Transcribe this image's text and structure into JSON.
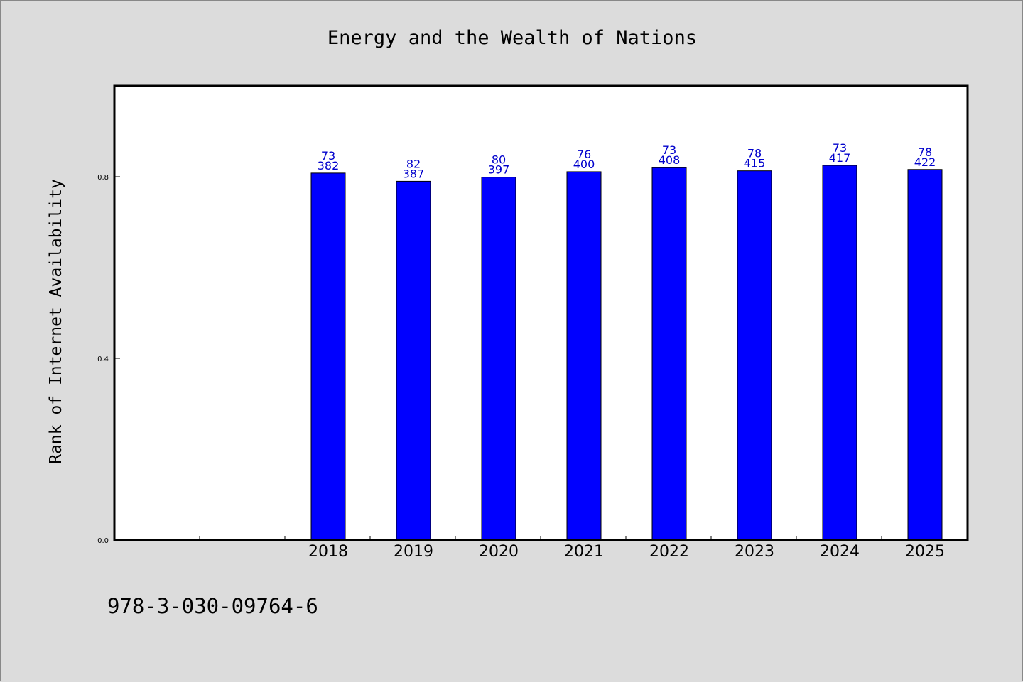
{
  "chart_data": {
    "type": "bar",
    "title": "Energy and the Wealth of Nations",
    "xlabel": "",
    "ylabel": "Rank of Internet Availability",
    "categories": [
      "",
      "",
      "2018",
      "2019",
      "2020",
      "2021",
      "2022",
      "2023",
      "2024",
      "2025"
    ],
    "series": [
      {
        "values": [
          null,
          null,
          0.808,
          0.79,
          0.799,
          0.811,
          0.82,
          0.813,
          0.825,
          0.816
        ],
        "color": "#0000ff",
        "label_top": [
          null,
          null,
          "73",
          "82",
          "80",
          "76",
          "73",
          "78",
          "73",
          "78"
        ],
        "label_bottom": [
          null,
          null,
          "382",
          "387",
          "397",
          "400",
          "408",
          "415",
          "417",
          "422"
        ],
        "label_color": "#0000cc"
      }
    ],
    "ylim": [
      0,
      1.0
    ],
    "yticks": [
      "0.0",
      "0.4",
      "0.8"
    ],
    "grid": false,
    "legend": "none"
  },
  "footer": {
    "isbn": "978-3-030-09764-6"
  },
  "colors": {
    "background": "#dcdcdc",
    "plot_background": "#ffffff",
    "bar": "#0000ff",
    "bar_label": "#0000cc"
  }
}
